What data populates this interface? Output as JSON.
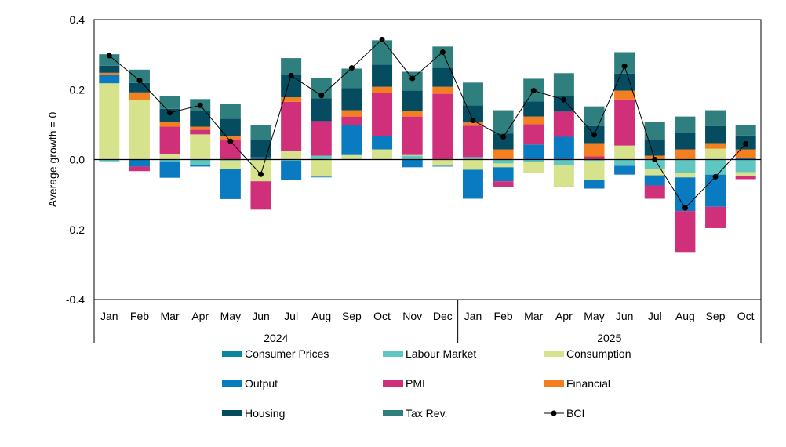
{
  "chart_data": {
    "type": "bar",
    "stacked": true,
    "ylabel": "Average growth = 0",
    "ylim": [
      -0.4,
      0.4
    ],
    "yticks": [
      "0.4",
      "0.2",
      "0.0",
      "-0.2",
      "-0.4"
    ],
    "ytick_values": [
      0.4,
      0.2,
      0.0,
      -0.2,
      -0.4
    ],
    "categories": [
      "Jan",
      "Feb",
      "Mar",
      "Apr",
      "May",
      "Jun",
      "Jul",
      "Aug",
      "Sep",
      "Oct",
      "Nov",
      "Dec",
      "Jan",
      "Feb",
      "Mar",
      "Apr",
      "May",
      "Jun",
      "Jul",
      "Aug",
      "Sep",
      "Oct"
    ],
    "groups": [
      {
        "label": "2024",
        "count": 12
      },
      {
        "label": "2025",
        "count": 10
      }
    ],
    "legend_position": "bottom",
    "series": [
      {
        "name": "Consumer Prices",
        "color": "#0a859f",
        "values": [
          0,
          0,
          0,
          0,
          0,
          0,
          0,
          0,
          0,
          0,
          0,
          0,
          0,
          0,
          0,
          0,
          0,
          0,
          0,
          0,
          0,
          0
        ]
      },
      {
        "name": "Labour Market",
        "color": "#5fc6c1",
        "values": [
          -0.005,
          0,
          -0.005,
          -0.016,
          -0.003,
          0,
          -0.003,
          0.011,
          0.002,
          0,
          0.011,
          0,
          0.007,
          -0.011,
          -0.006,
          -0.016,
          -0.004,
          -0.018,
          -0.027,
          -0.038,
          -0.043,
          -0.036
        ]
      },
      {
        "name": "Consumption",
        "color": "#d6e38c",
        "values": [
          0.218,
          0.17,
          0.016,
          0.072,
          -0.025,
          -0.062,
          0.025,
          -0.049,
          0.011,
          0.029,
          0.002,
          -0.018,
          -0.029,
          -0.011,
          -0.031,
          -0.061,
          -0.054,
          0.04,
          -0.018,
          -0.013,
          0.031,
          -0.011
        ]
      },
      {
        "name": "Output",
        "color": "#0b7bc1",
        "values": [
          0.025,
          -0.02,
          -0.047,
          -0.004,
          -0.085,
          0.004,
          -0.056,
          -0.002,
          0.085,
          0.038,
          -0.022,
          -0.002,
          -0.083,
          -0.04,
          0.043,
          0.065,
          -0.025,
          -0.025,
          -0.029,
          -0.096,
          -0.092,
          0.004
        ]
      },
      {
        "name": "PMI",
        "color": "#d0307a",
        "values": [
          0,
          -0.013,
          0.078,
          0.013,
          0.058,
          -0.081,
          0.14,
          0.099,
          0.025,
          0.123,
          0.11,
          0.188,
          0.09,
          -0.016,
          0.058,
          0.072,
          0.009,
          0.132,
          -0.038,
          -0.117,
          -0.061,
          -0.009
        ]
      },
      {
        "name": "Financial",
        "color": "#f47f20",
        "values": [
          0.005,
          0.022,
          0.013,
          0.009,
          0.009,
          0.002,
          0.013,
          0,
          0.018,
          0.018,
          0.016,
          0.02,
          0.009,
          0.029,
          0.022,
          -0.002,
          0.038,
          0.025,
          0.011,
          0.029,
          0.016,
          0.025
        ]
      },
      {
        "name": "Housing",
        "color": "#054c60",
        "values": [
          0.02,
          0.027,
          0.038,
          0.045,
          0.05,
          0.052,
          0.063,
          0.065,
          0.063,
          0.063,
          0.058,
          0.054,
          0.049,
          0.045,
          0.043,
          0.045,
          0.049,
          0.049,
          0.047,
          0.047,
          0.049,
          0.04
        ]
      },
      {
        "name": "Tax Rev.",
        "color": "#2f7f7e",
        "values": [
          0.033,
          0.038,
          0.036,
          0.034,
          0.043,
          0.04,
          0.049,
          0.058,
          0.056,
          0.07,
          0.054,
          0.061,
          0.065,
          0.067,
          0.065,
          0.065,
          0.056,
          0.061,
          0.049,
          0.047,
          0.045,
          0.029
        ]
      }
    ],
    "line": {
      "name": "BCI",
      "color": "#000000",
      "values": [
        0.297,
        0.226,
        0.134,
        0.155,
        0.052,
        -0.042,
        0.24,
        0.183,
        0.262,
        0.343,
        0.232,
        0.307,
        0.112,
        0.065,
        0.197,
        0.171,
        0.071,
        0.267,
        0.0,
        -0.138,
        -0.049,
        0.045
      ]
    }
  }
}
